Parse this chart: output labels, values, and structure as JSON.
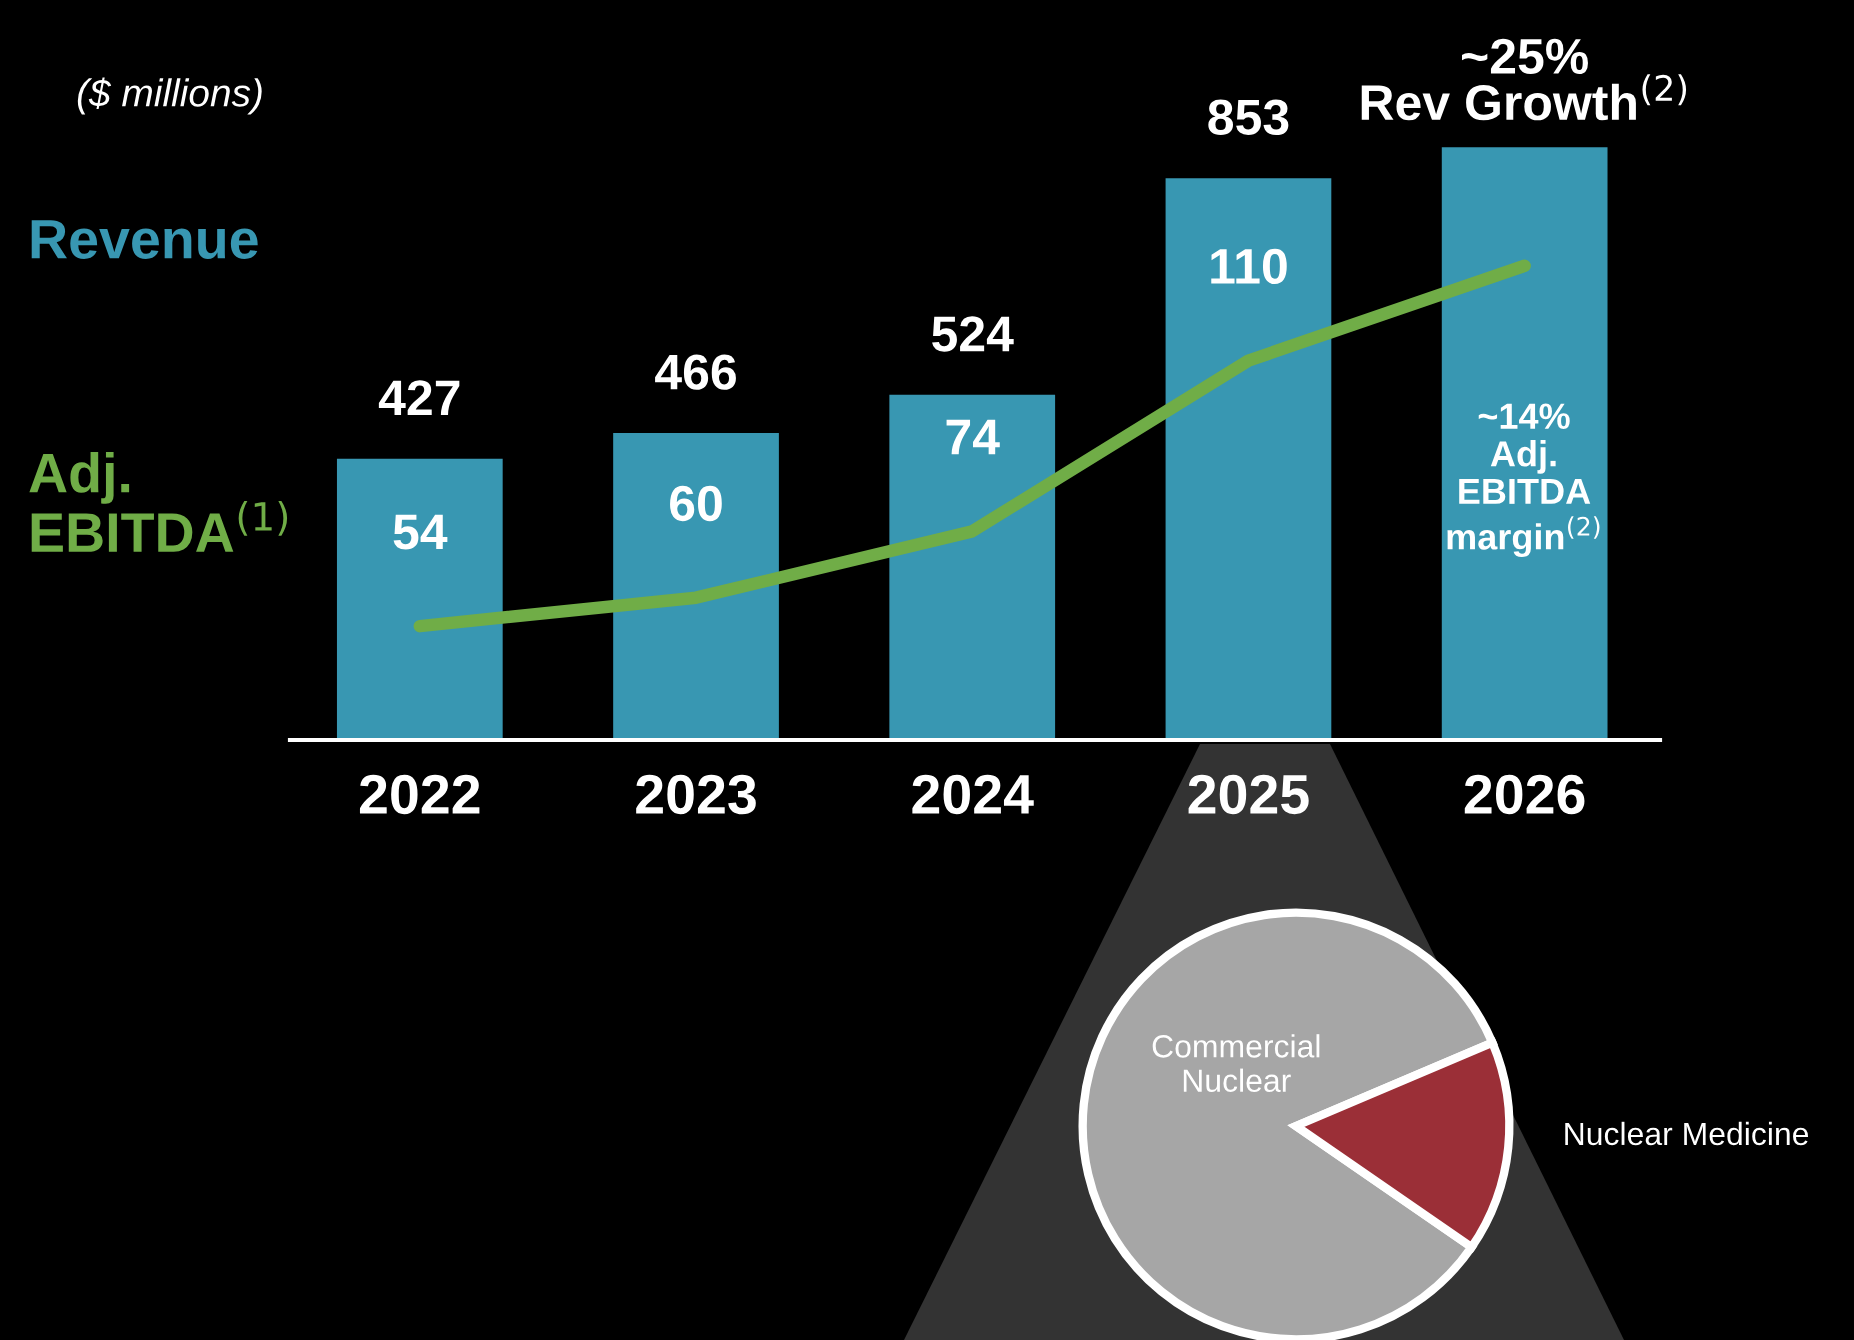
{
  "chart_data": [
    {
      "type": "bar",
      "categories": [
        "2022",
        "2023",
        "2024",
        "2025",
        "2026"
      ],
      "series": [
        {
          "name": "Revenue",
          "type": "bar",
          "color": "#3897b2",
          "values": [
            427,
            466,
            524,
            853,
            900
          ],
          "value_labels": [
            "427",
            "466",
            "524",
            "853",
            null
          ]
        },
        {
          "name": "Adj.\nEBITDA$^{(1)}$",
          "type": "line",
          "axis": "y2",
          "color": "#70ad47",
          "values": [
            54,
            60,
            74,
            110,
            130
          ],
          "value_labels": [
            "54",
            "60",
            "74",
            "110",
            null
          ]
        }
      ],
      "tick_labels": "x",
      "legend": "left",
      "grid": false,
      "annotations": [
        "($ millions)",
        {
          "text": "~25%\nRev Growth$^{(2)}$",
          "x": "2026",
          "y": 900
        },
        "~14%\nAdj.\nEBITDA\nmargin$^{(2)}$"
      ]
    },
    {
      "type": "pie",
      "categories": [
        "Commercial\nNuclear",
        "Nuclear Medicine"
      ],
      "values": [
        84,
        16
      ],
      "colors": [
        "#a6a6a6",
        "#9b2f37"
      ]
    }
  ]
}
